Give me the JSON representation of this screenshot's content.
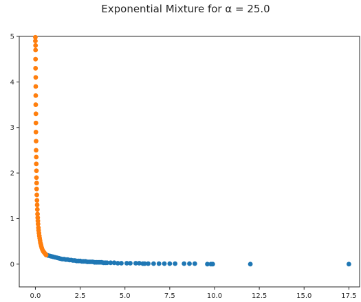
{
  "chart_data": {
    "type": "scatter",
    "title": "Exponential Mixture for α = 25.0",
    "xlabel": "",
    "ylabel": "",
    "xlim": [
      -0.9,
      18.1
    ],
    "ylim": [
      -0.5,
      5.0
    ],
    "xticks": [
      0.0,
      2.5,
      5.0,
      7.5,
      10.0,
      12.5,
      15.0,
      17.5
    ],
    "xtick_labels": [
      "0.0",
      "2.5",
      "5.0",
      "7.5",
      "10.0",
      "12.5",
      "15.0",
      "17.5"
    ],
    "yticks": [
      0,
      1,
      2,
      3,
      4,
      5
    ],
    "ytick_labels": [
      "0",
      "1",
      "2",
      "3",
      "4",
      "5"
    ],
    "grid": false,
    "legend": "none",
    "series": [
      {
        "color": "#1f77b4",
        "x": [
          0.6,
          0.7,
          0.8,
          0.9,
          1.0,
          1.1,
          1.2,
          1.3,
          1.4,
          1.5,
          1.6,
          1.7,
          1.8,
          1.9,
          2.0,
          2.1,
          2.2,
          2.3,
          2.4,
          2.5,
          2.6,
          2.7,
          2.8,
          2.9,
          3.0,
          3.1,
          3.2,
          3.3,
          3.4,
          3.5,
          3.6,
          3.7,
          3.8,
          3.9,
          4.0,
          4.2,
          4.4,
          4.6,
          4.8,
          5.1,
          5.3,
          5.6,
          5.8,
          6.0,
          6.1,
          6.3,
          6.6,
          6.9,
          7.2,
          7.5,
          7.8,
          8.3,
          8.6,
          8.9,
          9.6,
          9.8,
          9.9,
          12.0,
          17.5
        ],
        "y": [
          0.21,
          0.19,
          0.18,
          0.17,
          0.16,
          0.15,
          0.14,
          0.13,
          0.12,
          0.11,
          0.11,
          0.1,
          0.1,
          0.09,
          0.09,
          0.08,
          0.08,
          0.07,
          0.07,
          0.07,
          0.06,
          0.06,
          0.06,
          0.05,
          0.05,
          0.05,
          0.05,
          0.04,
          0.04,
          0.04,
          0.04,
          0.04,
          0.03,
          0.03,
          0.03,
          0.03,
          0.03,
          0.02,
          0.02,
          0.02,
          0.02,
          0.02,
          0.02,
          0.01,
          0.01,
          0.01,
          0.01,
          0.01,
          0.01,
          0.01,
          0.01,
          0.01,
          0.01,
          0.01,
          0.0,
          0.0,
          0.0,
          0.0,
          0.0
        ]
      },
      {
        "color": "#ff7f0e",
        "x": [
          0.0,
          0.0,
          0.01,
          0.01,
          0.01,
          0.01,
          0.02,
          0.02,
          0.02,
          0.02,
          0.03,
          0.03,
          0.03,
          0.04,
          0.04,
          0.05,
          0.05,
          0.06,
          0.06,
          0.07,
          0.07,
          0.08,
          0.09,
          0.1,
          0.11,
          0.12,
          0.13,
          0.14,
          0.15,
          0.17,
          0.18,
          0.2,
          0.22,
          0.24,
          0.26,
          0.28,
          0.31,
          0.33,
          0.36,
          0.4,
          0.44,
          0.48,
          0.52,
          0.56,
          0.6
        ],
        "y": [
          4.98,
          4.9,
          4.8,
          4.7,
          4.5,
          4.3,
          4.1,
          3.9,
          3.7,
          3.5,
          3.3,
          3.1,
          2.9,
          2.7,
          2.5,
          2.35,
          2.2,
          2.05,
          1.9,
          1.78,
          1.65,
          1.52,
          1.4,
          1.3,
          1.2,
          1.1,
          1.02,
          0.95,
          0.88,
          0.8,
          0.74,
          0.68,
          0.62,
          0.57,
          0.52,
          0.47,
          0.43,
          0.39,
          0.35,
          0.31,
          0.28,
          0.26,
          0.24,
          0.22,
          0.2
        ]
      }
    ]
  }
}
